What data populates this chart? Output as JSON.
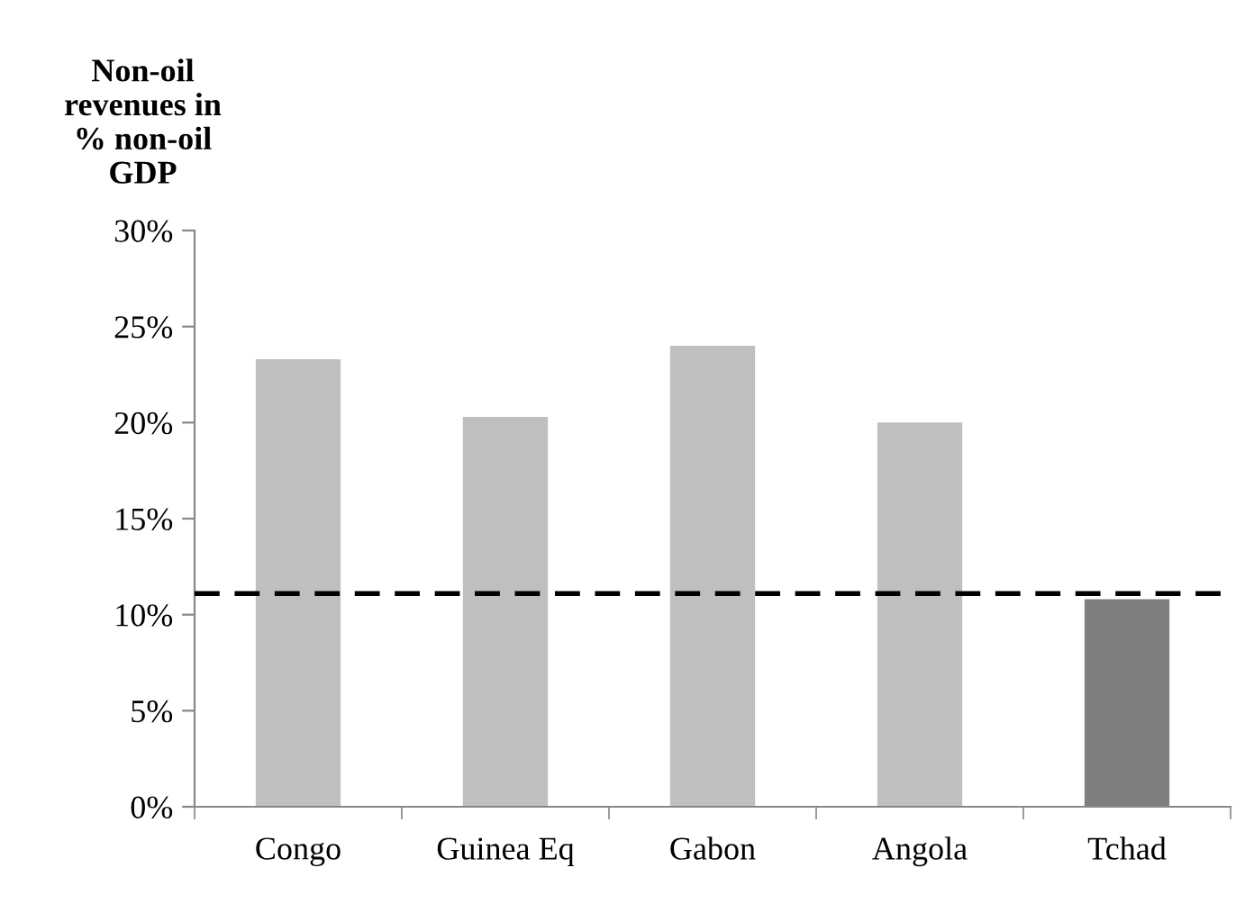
{
  "chart_data": {
    "type": "bar",
    "ylabel": "Non-oil\nrevenues in\n% non-oil\nGDP",
    "categories": [
      "Congo",
      "Guinea Eq",
      "Gabon",
      "Angola",
      "Tchad"
    ],
    "values": [
      23.3,
      20.3,
      24.0,
      20.0,
      10.8
    ],
    "colors": [
      "#bfbfbf",
      "#bfbfbf",
      "#bfbfbf",
      "#bfbfbf",
      "#7f7f7f"
    ],
    "ylim": [
      0,
      30
    ],
    "yticks": [
      {
        "value": 0,
        "label": "0%"
      },
      {
        "value": 5,
        "label": "5%"
      },
      {
        "value": 10,
        "label": "10%"
      },
      {
        "value": 15,
        "label": "15%"
      },
      {
        "value": 20,
        "label": "20%"
      },
      {
        "value": 25,
        "label": "25%"
      },
      {
        "value": 30,
        "label": "30%"
      }
    ],
    "ref_lines": [
      {
        "axis": "y",
        "value": 11.1,
        "color": "#000000",
        "line_style": "dashed"
      }
    ],
    "grid": false,
    "legend": false
  }
}
